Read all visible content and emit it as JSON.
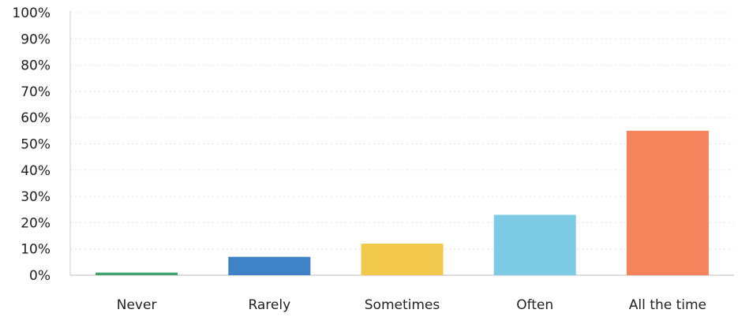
{
  "chart_data": {
    "type": "bar",
    "categories": [
      "Never",
      "Rarely",
      "Sometimes",
      "Often",
      "All the time"
    ],
    "values": [
      1,
      7,
      12,
      23,
      55
    ],
    "colors": [
      "#3fa36b",
      "#3f82c6",
      "#f2c94c",
      "#7ecbe6",
      "#f4845c"
    ],
    "ylim": [
      0,
      100
    ],
    "yticks": [
      0,
      10,
      20,
      30,
      40,
      50,
      60,
      70,
      80,
      90,
      100
    ],
    "ytick_labels": [
      "0%",
      "10%",
      "20%",
      "30%",
      "40%",
      "50%",
      "60%",
      "70%",
      "80%",
      "90%",
      "100%"
    ],
    "grid": true,
    "title": "",
    "xlabel": "",
    "ylabel": ""
  }
}
